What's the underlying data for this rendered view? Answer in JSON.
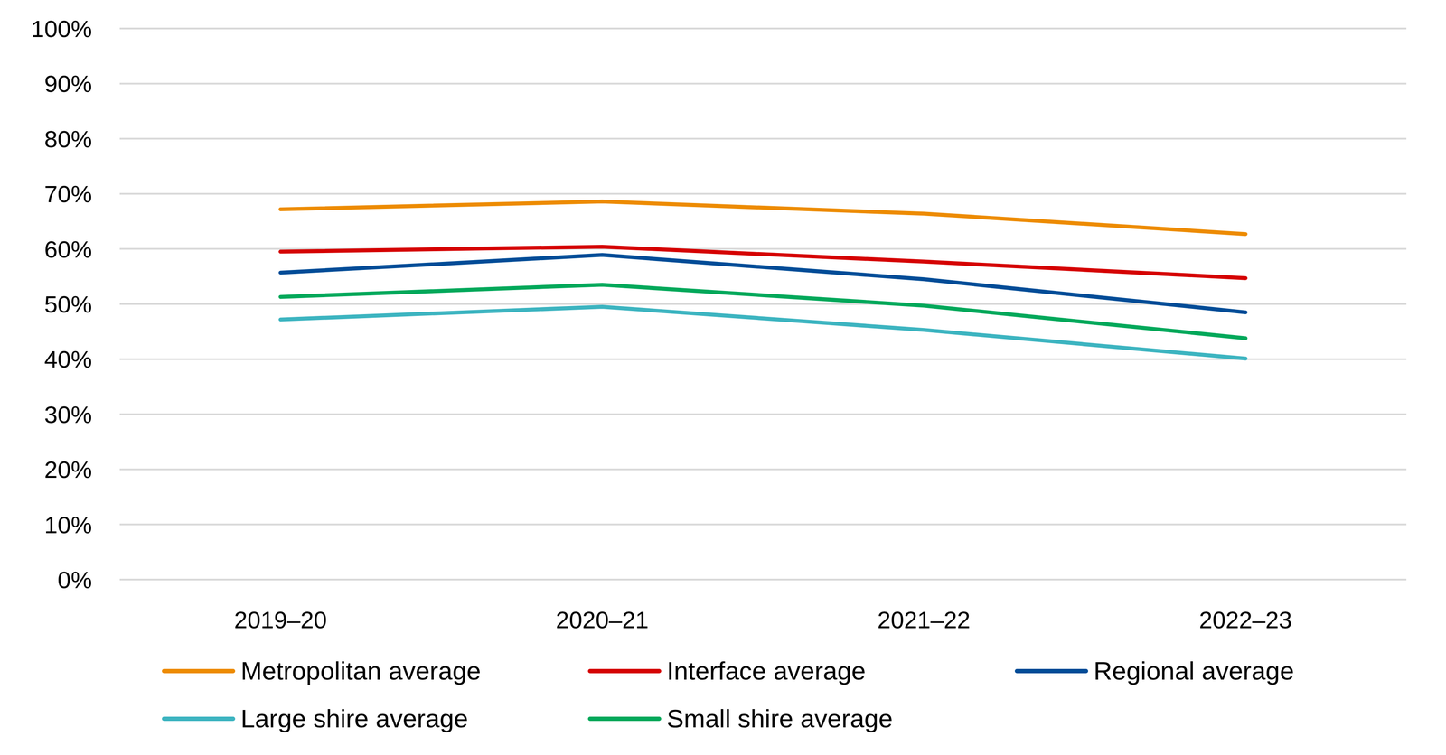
{
  "chart_data": {
    "type": "line",
    "categories": [
      "2019–20",
      "2020–21",
      "2021–22",
      "2022–23"
    ],
    "series": [
      {
        "name": "Metropolitan average",
        "color": "#ED8B00",
        "values": [
          67.2,
          68.6,
          66.4,
          62.7
        ]
      },
      {
        "name": "Interface average",
        "color": "#D50000",
        "values": [
          59.5,
          60.4,
          57.7,
          54.7
        ]
      },
      {
        "name": "Regional average",
        "color": "#004C97",
        "values": [
          55.7,
          58.9,
          54.5,
          48.5
        ]
      },
      {
        "name": "Large shire average",
        "color": "#3CB4C0",
        "values": [
          47.2,
          49.5,
          45.3,
          40.1
        ]
      },
      {
        "name": "Small shire average",
        "color": "#00A85A",
        "values": [
          51.3,
          53.5,
          49.7,
          43.8
        ]
      }
    ],
    "ylim": [
      0,
      100
    ],
    "yticks": [
      {
        "value": 0,
        "label": "0%"
      },
      {
        "value": 10,
        "label": "10%"
      },
      {
        "value": 20,
        "label": "20%"
      },
      {
        "value": 30,
        "label": "30%"
      },
      {
        "value": 40,
        "label": "40%"
      },
      {
        "value": 50,
        "label": "50%"
      },
      {
        "value": 60,
        "label": "60%"
      },
      {
        "value": 70,
        "label": "70%"
      },
      {
        "value": 80,
        "label": "80%"
      },
      {
        "value": 90,
        "label": "90%"
      },
      {
        "value": 100,
        "label": "100%"
      }
    ],
    "grid": true,
    "legend": "bottom"
  }
}
